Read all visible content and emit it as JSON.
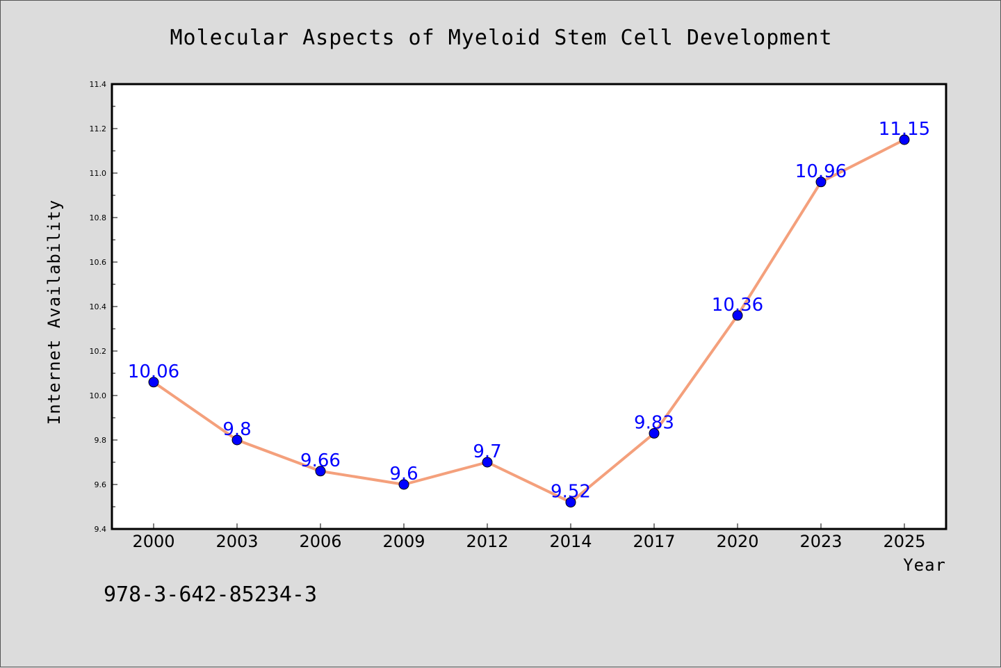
{
  "chart_data": {
    "type": "line",
    "title": "Molecular Aspects of Myeloid Stem Cell Development",
    "xlabel": "Year",
    "ylabel": "Internet Availability",
    "categories": [
      "2000",
      "2003",
      "2006",
      "2009",
      "2012",
      "2014",
      "2017",
      "2020",
      "2023",
      "2025"
    ],
    "series": [
      {
        "values": [
          10.06,
          9.8,
          9.66,
          9.6,
          9.7,
          9.52,
          9.83,
          10.36,
          10.96,
          11.15
        ],
        "data_labels": [
          "10.06",
          "9.8",
          "9.66",
          "9.6",
          "9.7",
          "9.52",
          "9.83",
          "10.36",
          "10.96",
          "11.15"
        ],
        "line_color": "#f4a07c",
        "marker_color": "#0000ff"
      }
    ],
    "ylim": [
      9.4,
      11.4
    ],
    "yticks": [
      "9.4",
      "9.6",
      "9.8",
      "10.0",
      "10.2",
      "10.4",
      "10.6",
      "10.8",
      "11.0",
      "11.2",
      "11.4"
    ],
    "grid": false,
    "legend": "none",
    "background_color": "#dcdcdc",
    "plot_background_color": "#ffffff",
    "label_color": "#0000ff"
  },
  "footer": {
    "isbn": "978-3-642-85234-3"
  }
}
